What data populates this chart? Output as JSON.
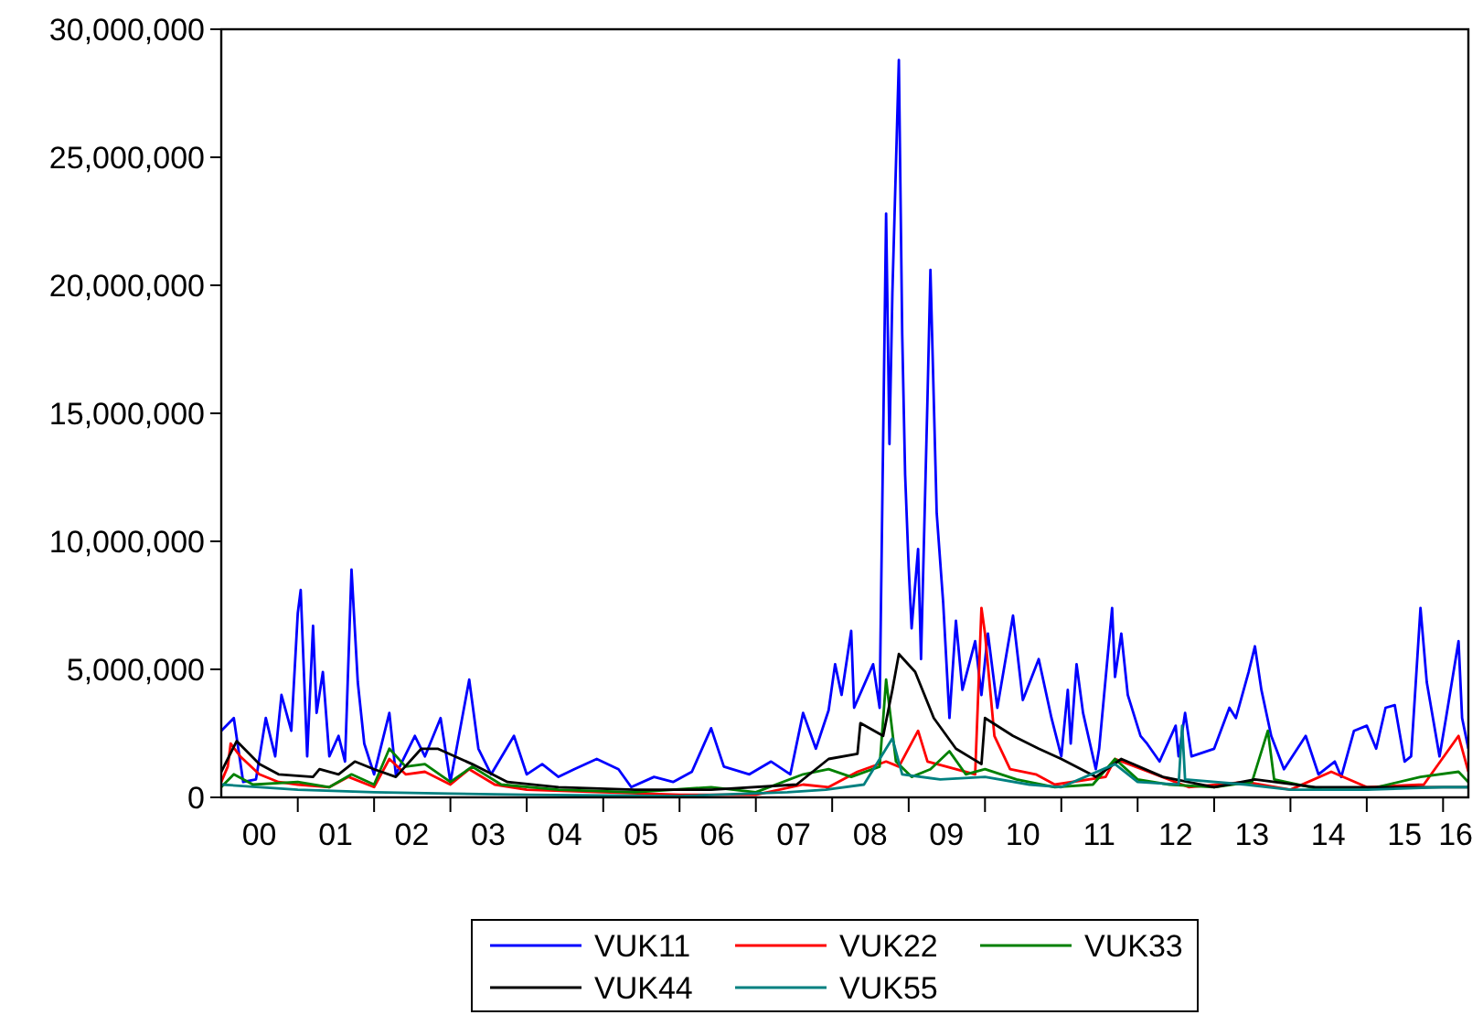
{
  "chart_data": {
    "type": "line",
    "xlim": [
      "2000-01-01",
      "2016-05-01"
    ],
    "ylim": [
      0,
      30000000
    ],
    "yticks": [
      {
        "value": 0,
        "label": "0"
      },
      {
        "value": 5000000,
        "label": "5,000,000"
      },
      {
        "value": 10000000,
        "label": "10,000,000"
      },
      {
        "value": 15000000,
        "label": "15,000,000"
      },
      {
        "value": 20000000,
        "label": "20,000,000"
      },
      {
        "value": 25000000,
        "label": "25,000,000"
      },
      {
        "value": 30000000,
        "label": "30,000,000"
      }
    ],
    "xticks": [
      {
        "value": "2000-07-01",
        "label": "00"
      },
      {
        "value": "2001-07-01",
        "label": "01"
      },
      {
        "value": "2002-07-01",
        "label": "02"
      },
      {
        "value": "2003-07-01",
        "label": "03"
      },
      {
        "value": "2004-07-01",
        "label": "04"
      },
      {
        "value": "2005-07-01",
        "label": "05"
      },
      {
        "value": "2006-07-01",
        "label": "06"
      },
      {
        "value": "2007-07-01",
        "label": "07"
      },
      {
        "value": "2008-07-01",
        "label": "08"
      },
      {
        "value": "2009-07-01",
        "label": "09"
      },
      {
        "value": "2010-07-01",
        "label": "10"
      },
      {
        "value": "2011-07-01",
        "label": "11"
      },
      {
        "value": "2012-07-01",
        "label": "12"
      },
      {
        "value": "2013-07-01",
        "label": "13"
      },
      {
        "value": "2014-07-01",
        "label": "14"
      },
      {
        "value": "2015-07-01",
        "label": "15"
      },
      {
        "value": "2016-03-01",
        "label": "16"
      },
      {
        "value": "2001-01-01",
        "label": null
      },
      {
        "value": "2002-01-01",
        "label": null
      },
      {
        "value": "2003-01-01",
        "label": null
      },
      {
        "value": "2004-01-01",
        "label": null
      },
      {
        "value": "2005-01-01",
        "label": null
      },
      {
        "value": "2006-01-01",
        "label": null
      },
      {
        "value": "2007-01-01",
        "label": null
      },
      {
        "value": "2008-01-01",
        "label": null
      },
      {
        "value": "2009-01-01",
        "label": null
      },
      {
        "value": "2010-01-01",
        "label": null
      },
      {
        "value": "2011-01-01",
        "label": null
      },
      {
        "value": "2012-01-01",
        "label": null
      },
      {
        "value": "2013-01-01",
        "label": null
      },
      {
        "value": "2014-01-01",
        "label": null
      },
      {
        "value": "2015-01-01",
        "label": null
      },
      {
        "value": "2016-01-01",
        "label": null
      }
    ],
    "legend": "bottom",
    "grid": false,
    "series": [
      {
        "name": "VUK11",
        "color": "#0000ff",
        "x": [
          "2000-01-01",
          "2000-03-01",
          "2000-04-15",
          "2000-06-15",
          "2000-08-01",
          "2000-09-15",
          "2000-10-15",
          "2000-12-01",
          "2001-01-01",
          "2001-01-15",
          "2001-02-15",
          "2001-03-15",
          "2001-04-01",
          "2001-05-01",
          "2001-06-01",
          "2001-07-15",
          "2001-08-15",
          "2001-09-15",
          "2001-10-15",
          "2001-11-15",
          "2002-01-01",
          "2002-03-15",
          "2002-04-15",
          "2002-07-15",
          "2002-09-01",
          "2002-11-15",
          "2003-01-01",
          "2003-04-01",
          "2003-05-15",
          "2003-07-15",
          "2003-11-01",
          "2004-01-01",
          "2004-03-15",
          "2004-06-01",
          "2004-08-15",
          "2004-12-01",
          "2005-03-15",
          "2005-05-15",
          "2005-09-01",
          "2005-12-01",
          "2006-03-01",
          "2006-06-01",
          "2006-08-01",
          "2006-12-01",
          "2007-03-15",
          "2007-06-15",
          "2007-08-15",
          "2007-10-15",
          "2007-12-15",
          "2008-01-15",
          "2008-02-15",
          "2008-04-01",
          "2008-04-15",
          "2008-07-15",
          "2008-08-15",
          "2008-09-15",
          "2008-10-01",
          "2008-10-15",
          "2008-11-15",
          "2008-12-01",
          "2008-12-15",
          "2009-01-01",
          "2009-01-15",
          "2009-02-15",
          "2009-03-01",
          "2009-04-01",
          "2009-04-15",
          "2009-05-15",
          "2009-06-15",
          "2009-07-15",
          "2009-08-15",
          "2009-09-15",
          "2009-11-15",
          "2009-12-15",
          "2010-01-15",
          "2010-03-01",
          "2010-05-15",
          "2010-07-01",
          "2010-09-15",
          "2010-11-15",
          "2011-01-01",
          "2011-02-01",
          "2011-02-15",
          "2011-03-15",
          "2011-04-15",
          "2011-06-15",
          "2011-07-01",
          "2011-09-01",
          "2011-09-15",
          "2011-10-15",
          "2011-11-15",
          "2012-01-15",
          "2012-02-15",
          "2012-04-15",
          "2012-07-01",
          "2012-07-15",
          "2012-08-15",
          "2012-09-15",
          "2013-01-01",
          "2013-03-15",
          "2013-04-15",
          "2013-06-15",
          "2013-07-15",
          "2013-08-15",
          "2013-10-01",
          "2013-12-01",
          "2014-03-15",
          "2014-05-15",
          "2014-08-01",
          "2014-09-01",
          "2014-11-01",
          "2015-01-01",
          "2015-02-15",
          "2015-04-01",
          "2015-05-15",
          "2015-07-01",
          "2015-08-01",
          "2015-09-15",
          "2015-10-15",
          "2015-12-15",
          "2016-01-15",
          "2016-03-15",
          "2016-04-01",
          "2016-05-01"
        ],
        "values": [
          2600000,
          3100000,
          600000,
          700000,
          3100000,
          1600000,
          4000000,
          2600000,
          7200000,
          8100000,
          1600000,
          6700000,
          3300000,
          4900000,
          1600000,
          2400000,
          1400000,
          8900000,
          4500000,
          2100000,
          900000,
          3300000,
          900000,
          2400000,
          1600000,
          3100000,
          600000,
          4600000,
          1900000,
          900000,
          2400000,
          900000,
          1300000,
          800000,
          1100000,
          1500000,
          1100000,
          400000,
          800000,
          600000,
          1000000,
          2700000,
          1200000,
          900000,
          1400000,
          900000,
          3300000,
          1900000,
          3400000,
          5200000,
          4000000,
          6500000,
          3500000,
          5200000,
          3500000,
          22800000,
          13800000,
          19700000,
          28800000,
          18100000,
          12600000,
          9000000,
          6600000,
          9700000,
          5400000,
          15600000,
          20600000,
          11100000,
          7600000,
          3100000,
          6900000,
          4200000,
          6100000,
          4000000,
          6400000,
          3500000,
          7100000,
          3800000,
          5400000,
          3100000,
          1600000,
          4200000,
          2100000,
          5200000,
          3300000,
          1100000,
          1900000,
          7400000,
          4700000,
          6400000,
          4000000,
          2400000,
          2100000,
          1400000,
          2800000,
          1600000,
          3300000,
          1600000,
          1900000,
          3500000,
          3100000,
          4900000,
          5900000,
          4200000,
          2400000,
          1100000,
          2400000,
          900000,
          1400000,
          800000,
          2600000,
          2800000,
          1900000,
          3500000,
          3600000,
          1400000,
          1600000,
          7400000,
          4500000,
          1600000,
          3100000,
          6100000,
          3100000,
          1900000
        ]
      },
      {
        "name": "VUK22",
        "color": "#ff0000",
        "x": [
          "2000-01-01",
          "2000-02-01",
          "2000-02-15",
          "2000-04-01",
          "2000-07-01",
          "2000-10-01",
          "2001-01-01",
          "2001-06-01",
          "2001-09-01",
          "2002-01-01",
          "2002-03-15",
          "2002-06-01",
          "2002-09-01",
          "2003-01-01",
          "2003-04-01",
          "2003-08-01",
          "2004-01-01",
          "2005-01-01",
          "2006-01-01",
          "2007-01-01",
          "2007-08-15",
          "2007-12-15",
          "2008-05-01",
          "2008-09-15",
          "2008-11-15",
          "2009-02-15",
          "2009-04-01",
          "2009-07-01",
          "2009-11-15",
          "2009-12-15",
          "2010-01-01",
          "2010-02-15",
          "2010-05-01",
          "2010-09-01",
          "2010-12-01",
          "2011-08-01",
          "2011-09-15",
          "2012-09-01",
          "2013-06-01",
          "2014-01-01",
          "2014-07-15",
          "2015-01-01",
          "2015-10-01",
          "2016-03-15",
          "2016-05-01"
        ],
        "values": [
          600000,
          1200000,
          2100000,
          1600000,
          900000,
          600000,
          500000,
          400000,
          800000,
          400000,
          1500000,
          900000,
          1000000,
          500000,
          1100000,
          500000,
          300000,
          200000,
          100000,
          100000,
          500000,
          400000,
          1000000,
          1400000,
          1200000,
          2600000,
          1400000,
          1200000,
          900000,
          7400000,
          6400000,
          2400000,
          1100000,
          900000,
          500000,
          800000,
          1500000,
          400000,
          600000,
          300000,
          1000000,
          400000,
          500000,
          2400000,
          1000000
        ]
      },
      {
        "name": "VUK33",
        "color": "#008000",
        "x": [
          "2000-01-01",
          "2000-03-01",
          "2000-06-01",
          "2001-01-01",
          "2001-06-01",
          "2001-09-15",
          "2002-01-01",
          "2002-03-15",
          "2002-06-01",
          "2002-09-01",
          "2003-01-01",
          "2003-04-15",
          "2003-09-01",
          "2004-06-01",
          "2005-06-01",
          "2006-06-01",
          "2007-01-01",
          "2007-08-15",
          "2007-12-15",
          "2008-04-01",
          "2008-08-15",
          "2008-09-15",
          "2008-11-01",
          "2009-01-15",
          "2009-04-15",
          "2009-07-15",
          "2009-10-01",
          "2010-01-01",
          "2010-06-01",
          "2010-12-01",
          "2011-06-01",
          "2011-09-15",
          "2012-01-01",
          "2012-06-01",
          "2013-01-01",
          "2013-07-01",
          "2013-09-15",
          "2013-10-15",
          "2014-06-01",
          "2015-01-01",
          "2015-09-15",
          "2016-03-15",
          "2016-05-01"
        ],
        "values": [
          400000,
          900000,
          500000,
          600000,
          400000,
          900000,
          500000,
          1900000,
          1200000,
          1300000,
          600000,
          1200000,
          500000,
          300000,
          200000,
          400000,
          200000,
          900000,
          1100000,
          800000,
          1200000,
          4600000,
          1400000,
          800000,
          1100000,
          1800000,
          900000,
          1100000,
          700000,
          400000,
          500000,
          1500000,
          700000,
          500000,
          400000,
          600000,
          2600000,
          700000,
          300000,
          300000,
          800000,
          1000000,
          600000
        ]
      },
      {
        "name": "VUK44",
        "color": "#000000",
        "x": [
          "2000-01-01",
          "2000-03-15",
          "2000-07-01",
          "2000-10-01",
          "2001-03-15",
          "2001-04-15",
          "2001-07-15",
          "2001-10-01",
          "2002-01-01",
          "2002-04-15",
          "2002-08-15",
          "2002-11-01",
          "2003-04-15",
          "2003-10-01",
          "2004-06-01",
          "2005-06-01",
          "2006-06-01",
          "2007-07-15",
          "2007-12-15",
          "2008-05-01",
          "2008-05-15",
          "2008-09-01",
          "2008-10-15",
          "2008-11-15",
          "2009-02-01",
          "2009-05-01",
          "2009-08-15",
          "2009-12-15",
          "2010-01-01",
          "2010-05-15",
          "2010-09-15",
          "2011-01-01",
          "2011-06-15",
          "2011-10-15",
          "2012-05-01",
          "2013-01-01",
          "2013-07-15",
          "2014-05-01",
          "2015-06-01",
          "2016-05-01"
        ],
        "values": [
          1000000,
          2200000,
          1300000,
          900000,
          800000,
          1100000,
          900000,
          1400000,
          1100000,
          800000,
          1900000,
          1900000,
          1300000,
          600000,
          400000,
          300000,
          300000,
          500000,
          1500000,
          1700000,
          2900000,
          2400000,
          4200000,
          5600000,
          4900000,
          3100000,
          1900000,
          1300000,
          3100000,
          2400000,
          1900000,
          1500000,
          800000,
          1500000,
          800000,
          400000,
          700000,
          400000,
          400000,
          400000
        ]
      },
      {
        "name": "VUK55",
        "color": "#008080",
        "x": [
          "2000-01-01",
          "2001-01-01",
          "2002-01-01",
          "2003-01-01",
          "2004-01-01",
          "2006-01-01",
          "2007-06-01",
          "2007-12-01",
          "2008-06-01",
          "2008-10-15",
          "2008-12-01",
          "2009-06-01",
          "2010-01-01",
          "2010-08-01",
          "2011-01-01",
          "2011-09-15",
          "2012-01-01",
          "2012-07-15",
          "2012-08-01",
          "2012-08-15",
          "2013-06-01",
          "2014-01-01",
          "2015-01-01",
          "2016-01-01",
          "2016-05-01"
        ],
        "values": [
          500000,
          300000,
          200000,
          150000,
          100000,
          50000,
          200000,
          300000,
          500000,
          2300000,
          900000,
          700000,
          800000,
          500000,
          400000,
          1300000,
          600000,
          500000,
          2800000,
          700000,
          500000,
          300000,
          300000,
          400000,
          400000
        ]
      }
    ]
  }
}
